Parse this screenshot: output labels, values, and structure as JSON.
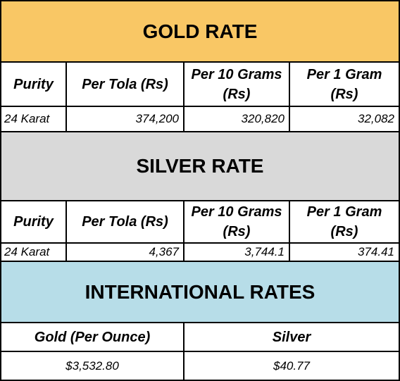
{
  "gold": {
    "title": "GOLD RATE",
    "headers": [
      "Purity",
      "Per Tola (Rs)",
      "Per 10 Grams (Rs)",
      "Per 1 Gram (Rs)"
    ],
    "rows": [
      [
        "24 Karat",
        "374,200",
        "320,820",
        "32,082"
      ]
    ]
  },
  "silver": {
    "title": "SILVER RATE",
    "headers": [
      "Purity",
      "Per Tola (Rs)",
      "Per 10 Grams (Rs)",
      "Per 1 Gram (Rs)"
    ],
    "rows": [
      [
        "24 Karat",
        "4,367",
        "3,744.1",
        "374.41"
      ]
    ]
  },
  "international": {
    "title": "INTERNATIONAL RATES",
    "headers": [
      "Gold (Per Ounce)",
      "Silver"
    ],
    "rows": [
      [
        "$3,532.80",
        "$40.77"
      ]
    ]
  }
}
